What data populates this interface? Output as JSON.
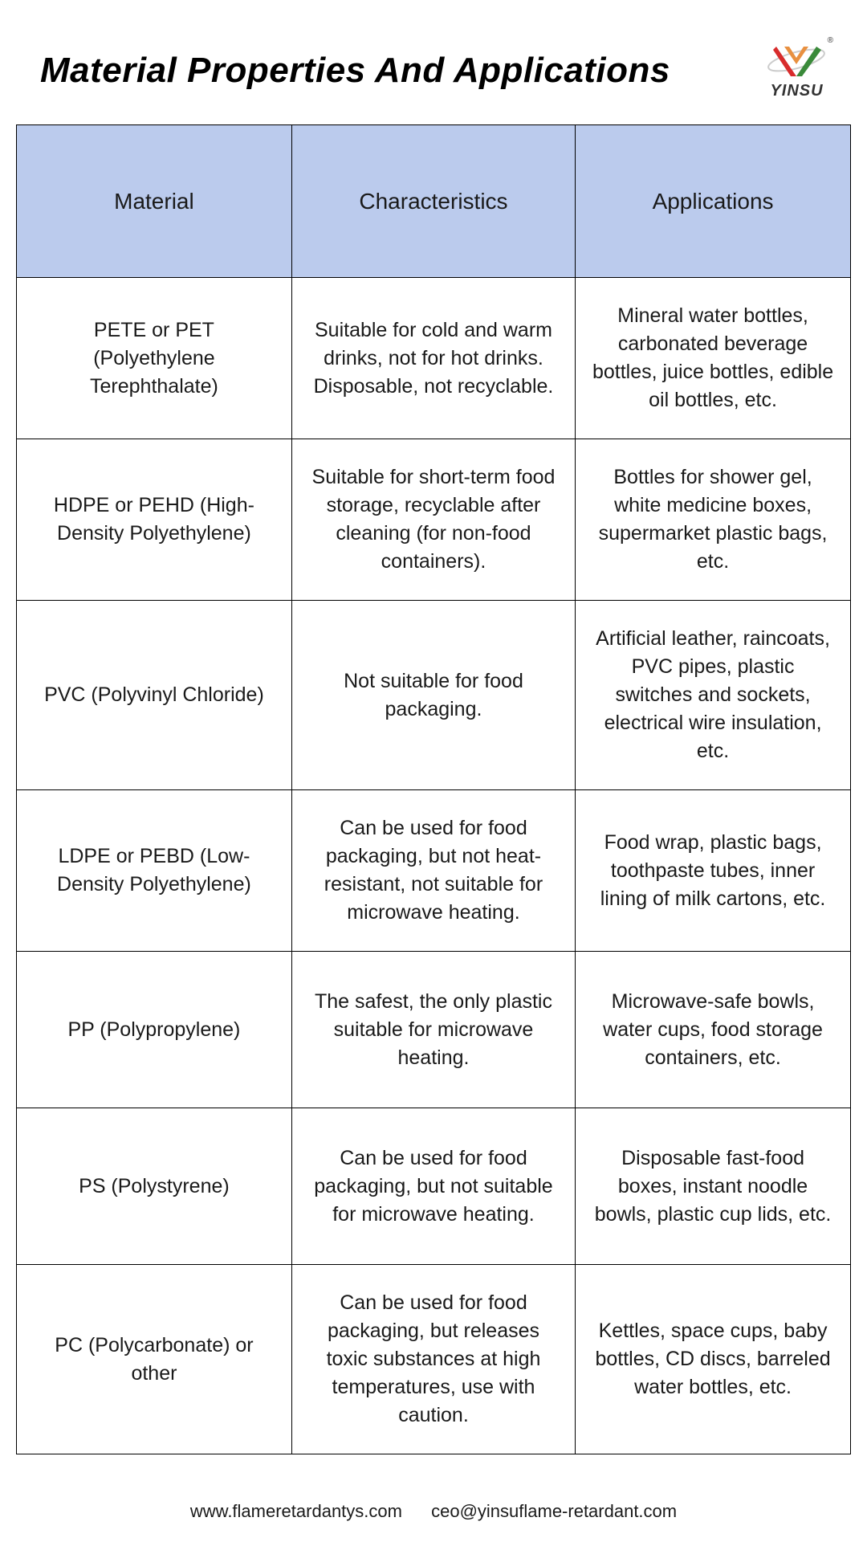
{
  "page": {
    "title": "Material Properties And Applications",
    "logo_text": "YINSU",
    "logo_colors": {
      "red": "#d82c2c",
      "green": "#3a8a3a",
      "orange": "#e89040",
      "swoosh": "#cccccc"
    }
  },
  "table": {
    "header_bg": "#bbcbed",
    "border_color": "#000000",
    "columns": [
      "Material",
      "Characteristics",
      "Applications"
    ],
    "rows": [
      {
        "material": "PETE or PET (Polyethylene Terephthalate)",
        "characteristics": "Suitable for cold and warm drinks, not for hot drinks. Disposable, not recyclable.",
        "applications": "Mineral water bottles, carbonated beverage bottles, juice bottles, edible oil bottles, etc."
      },
      {
        "material": "HDPE or PEHD (High-Density Polyethylene)",
        "characteristics": "Suitable for short-term food storage, recyclable after cleaning (for non-food containers).",
        "applications": "Bottles for shower gel, white medicine boxes, supermarket plastic bags, etc."
      },
      {
        "material": "PVC (Polyvinyl Chloride)",
        "characteristics": "Not suitable for food packaging.",
        "applications": "Artificial leather, raincoats, PVC pipes, plastic switches and sockets, electrical wire insulation, etc."
      },
      {
        "material": "LDPE or PEBD (Low-Density Polyethylene)",
        "characteristics": "Can be used for food packaging, but not heat-resistant, not suitable for microwave heating.",
        "applications": "Food wrap, plastic bags, toothpaste tubes, inner lining of milk cartons, etc."
      },
      {
        "material": "PP (Polypropylene)",
        "characteristics": "The safest, the only plastic suitable for microwave heating.",
        "applications": "Microwave-safe bowls, water cups, food storage containers, etc."
      },
      {
        "material": "PS (Polystyrene)",
        "characteristics": "Can be used for food packaging, but not suitable for microwave heating.",
        "applications": "Disposable fast-food boxes, instant noodle bowls, plastic cup lids, etc."
      },
      {
        "material": "PC (Polycarbonate) or other",
        "characteristics": "Can be used for food packaging, but releases toxic substances at high temperatures, use with caution.",
        "applications": "Kettles, space cups, baby bottles, CD discs, barreled water bottles, etc."
      }
    ]
  },
  "footer": {
    "website": "www.flameretardantys.com",
    "email": "ceo@yinsuflame-retardant.com"
  }
}
